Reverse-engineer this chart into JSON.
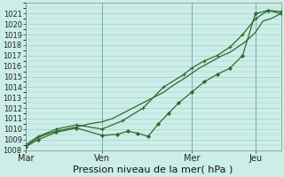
{
  "bg_color": "#cceee8",
  "grid_color": "#aacccc",
  "line_color": "#2d6a2d",
  "xlabel": "Pression niveau de la mer( hPa )",
  "ylim": [
    1008,
    1022
  ],
  "yticks": [
    1008,
    1009,
    1010,
    1011,
    1012,
    1013,
    1014,
    1015,
    1016,
    1017,
    1018,
    1019,
    1020,
    1021
  ],
  "xtick_labels": [
    "Mar",
    "Ven",
    "Mer",
    "Jeu"
  ],
  "xtick_positions": [
    0.0,
    0.3,
    0.65,
    0.9
  ],
  "vline_positions": [
    0.0,
    0.3,
    0.65,
    0.9
  ],
  "line1_x": [
    0.0,
    0.025,
    0.05,
    0.08,
    0.12,
    0.16,
    0.2,
    0.25,
    0.3,
    0.34,
    0.38,
    0.42,
    0.46,
    0.5,
    0.54,
    0.58,
    0.62,
    0.65,
    0.68,
    0.71,
    0.74,
    0.77,
    0.8,
    0.83,
    0.86,
    0.9,
    0.93,
    0.96,
    1.0
  ],
  "line1_y": [
    1008.3,
    1008.8,
    1009.2,
    1009.5,
    1009.8,
    1010.0,
    1010.2,
    1010.5,
    1010.7,
    1011.0,
    1011.5,
    1012.0,
    1012.5,
    1013.0,
    1013.5,
    1014.2,
    1014.8,
    1015.3,
    1015.8,
    1016.2,
    1016.6,
    1017.0,
    1017.3,
    1017.8,
    1018.3,
    1019.2,
    1020.3,
    1020.5,
    1021.0
  ],
  "line2_x": [
    0.0,
    0.05,
    0.12,
    0.2,
    0.3,
    0.36,
    0.4,
    0.44,
    0.48,
    0.52,
    0.56,
    0.6,
    0.65,
    0.7,
    0.75,
    0.8,
    0.85,
    0.9,
    0.95,
    1.0
  ],
  "line2_y": [
    1008.3,
    1009.0,
    1009.7,
    1010.1,
    1009.4,
    1009.5,
    1009.8,
    1009.6,
    1009.3,
    1010.5,
    1011.5,
    1012.5,
    1013.5,
    1014.5,
    1015.2,
    1015.8,
    1017.0,
    1021.0,
    1021.3,
    1021.0
  ],
  "line3_x": [
    0.0,
    0.05,
    0.12,
    0.2,
    0.3,
    0.38,
    0.46,
    0.54,
    0.62,
    0.65,
    0.7,
    0.75,
    0.8,
    0.85,
    0.9,
    0.95,
    1.0
  ],
  "line3_y": [
    1008.5,
    1009.3,
    1010.0,
    1010.4,
    1010.0,
    1010.8,
    1012.0,
    1014.0,
    1015.2,
    1015.8,
    1016.5,
    1017.0,
    1017.8,
    1019.0,
    1020.5,
    1021.3,
    1021.2
  ],
  "ylabel_fontsize": 6,
  "xlabel_fontsize": 8
}
